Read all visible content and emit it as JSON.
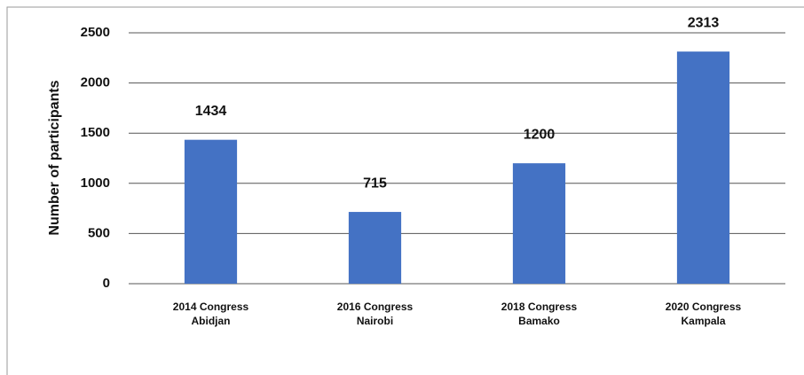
{
  "chart_data": {
    "type": "bar",
    "y_label": "Number of participants",
    "categories": [
      [
        "2014 Congress",
        "Abidjan"
      ],
      [
        "2016 Congress",
        "Nairobi"
      ],
      [
        "2018 Congress",
        "Bamako"
      ],
      [
        "2020 Congress",
        "Kampala"
      ]
    ],
    "values": [
      1434,
      715,
      1200,
      2313
    ],
    "color": "#4472c4",
    "ylim": [
      0,
      2500
    ],
    "yticks": [
      0,
      500,
      1000,
      1500,
      2000,
      2500
    ],
    "grid": true
  }
}
